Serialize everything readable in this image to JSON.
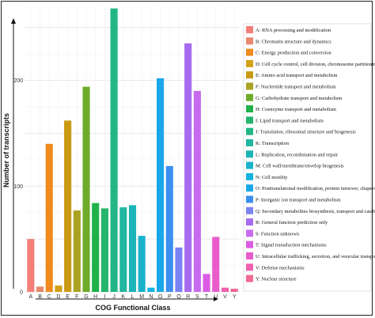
{
  "chart_data": {
    "type": "bar",
    "title": "",
    "xlabel": "COG Functional Class",
    "ylabel": "Number of transcripts",
    "ylim": [
      0,
      270
    ],
    "yticks": [
      0,
      100,
      200
    ],
    "grid": true,
    "legend_position": "right",
    "categories": [
      "A",
      "B",
      "C",
      "D",
      "E",
      "F",
      "G",
      "H",
      "I",
      "J",
      "K",
      "L",
      "M",
      "N",
      "O",
      "P",
      "Q",
      "R",
      "S",
      "T",
      "U",
      "V",
      "Y"
    ],
    "values": [
      50,
      5,
      140,
      6,
      162,
      77,
      194,
      84,
      79,
      268,
      80,
      82,
      53,
      4,
      202,
      119,
      42,
      235,
      190,
      17,
      52,
      4,
      3
    ],
    "colors": [
      "#f47e78",
      "#e9886c",
      "#f08a1e",
      "#d4a017",
      "#c99a12",
      "#a9a321",
      "#6eab2a",
      "#1fb24a",
      "#25b56c",
      "#22b686",
      "#21b7a1",
      "#1ab5b6",
      "#1bb3cc",
      "#11b2e2",
      "#1aa7ea",
      "#3c8ff1",
      "#7b82f3",
      "#a86bef",
      "#c86aee",
      "#dc5de3",
      "#ea5bcc",
      "#f15fae",
      "#f06a92"
    ],
    "legend": [
      "A: RNA processing and modification",
      "B: Chromatin structure and dynamics",
      "C: Energy production and conversion",
      "D: Cell cycle control, cell division, chromosome partitioning",
      "E: Amino acid transport and metabolism",
      "F: Nucleotide transport and metabolism",
      "G: Carbohydrate transport and metabolism",
      "H: Coenzyme transport and metabolism",
      "I: Lipid transport and metabolism",
      "J: Translation, ribosomal structure and biogenesis",
      "K: Transcription",
      "L: Replication, recombination and repair",
      "M: Cell wall/membrane/envelop biogenesis",
      "N: Cell motility",
      "O: Posttranslational modification, protein turnover, chaperones",
      "P: Inorganic ion transport and metabolism",
      "Q: Secondary metabolites biosynthesis, transport and catabolism",
      "R: General function prediction only",
      "S: Function unknown",
      "T: Signal transduction mechanisms",
      "U: Intracellular trafficking, secretion, and vesicular transport",
      "V: Defense mechanisms",
      "Y: Nuclear structure"
    ]
  }
}
